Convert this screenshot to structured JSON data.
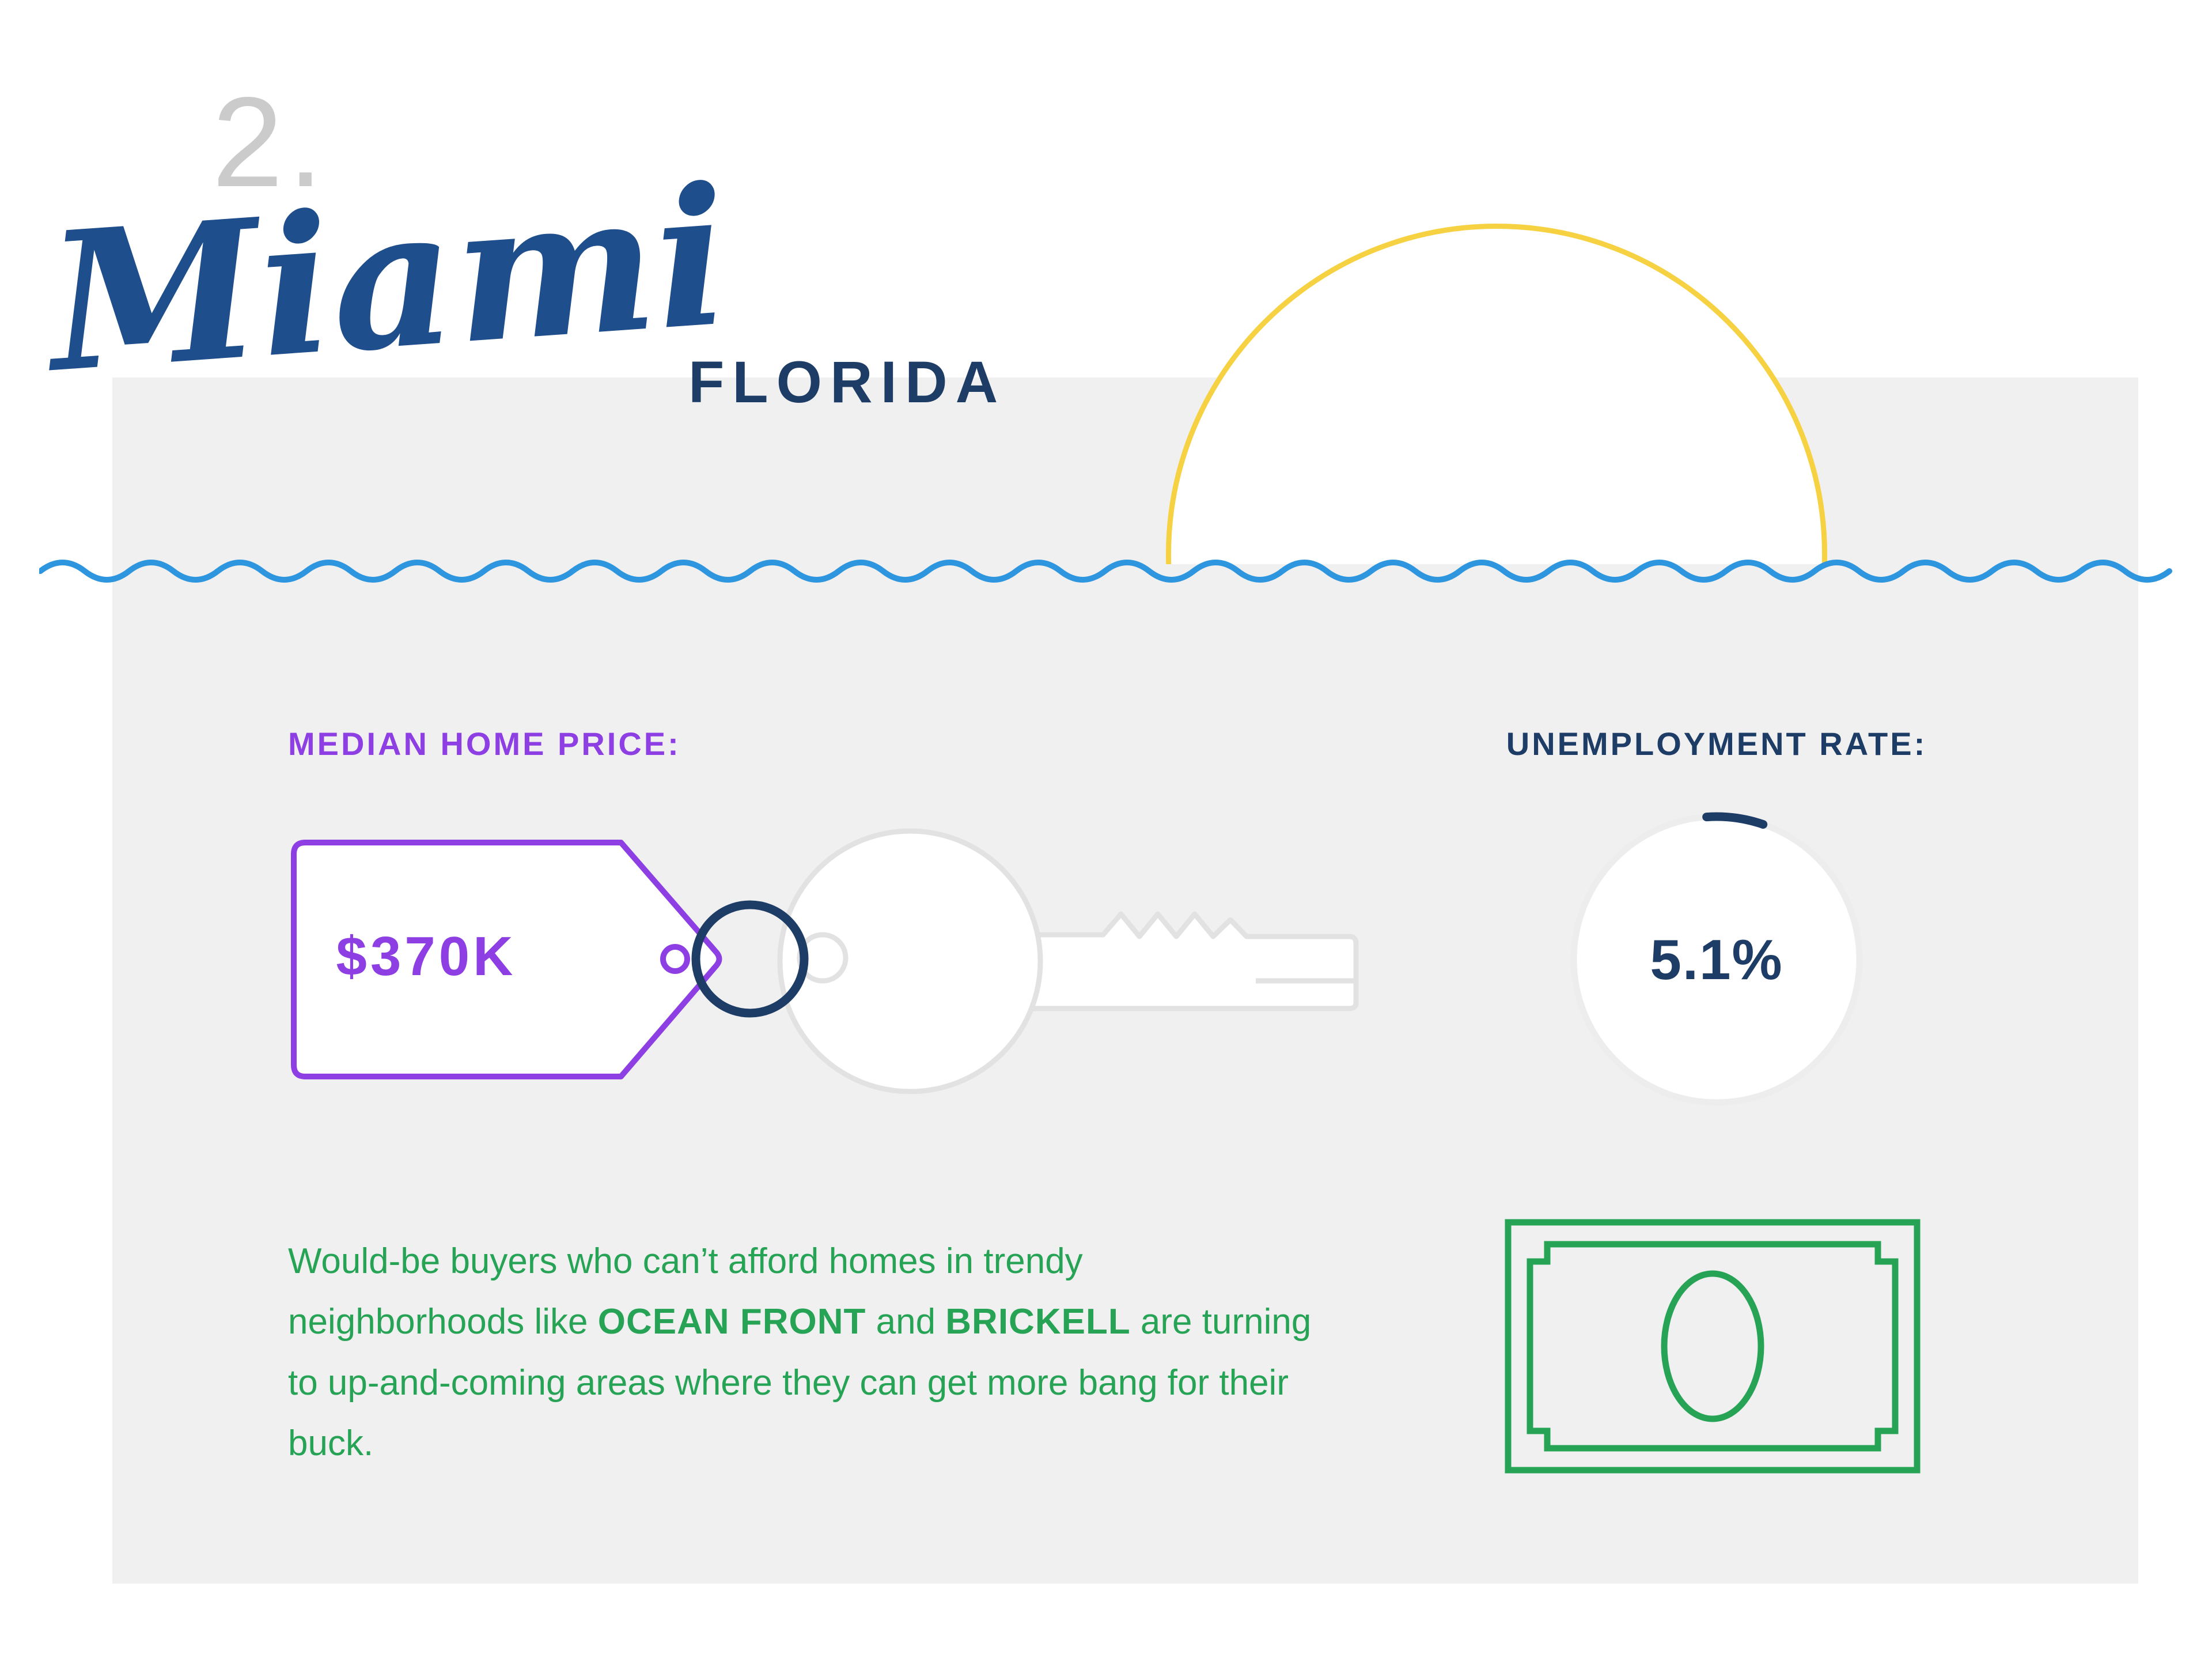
{
  "header": {
    "rank": "2.",
    "city": "Miami",
    "state": "FLORIDA"
  },
  "stats": {
    "median_home_price": {
      "label": "MEDIAN HOME PRICE:",
      "value": "$370K"
    },
    "unemployment_rate": {
      "label": "UNEMPLOYMENT RATE:",
      "value": "5.1%",
      "percent": 5.1
    }
  },
  "description": {
    "part1": "Would-be buyers who can’t afford homes in trendy neighborhoods like ",
    "bold1": "OCEAN FRONT",
    "part2": " and ",
    "bold2": "BRICKELL",
    "part3": " are turning to up-and-coming areas where they can get more bang for their buck."
  },
  "icons": {
    "sun": "sun-icon",
    "wave": "wave-icon",
    "price_tag": "price-tag-icon",
    "key": "key-icon",
    "key_ring": "key-ring-icon",
    "gauge": "unemployment-gauge-icon",
    "dollar_bill": "dollar-bill-icon"
  },
  "colors": {
    "navy": "#1d3c66",
    "script_blue": "#1f4e8d",
    "purple": "#8d3fe3",
    "green": "#27a356",
    "sun_yellow": "#f6d243",
    "wave_blue": "#2e96df",
    "panel_gray": "#f0f0f0",
    "key_gray": "#e2e2e2",
    "gauge_gray": "#ededed",
    "rank_gray": "#cbcbcb"
  }
}
